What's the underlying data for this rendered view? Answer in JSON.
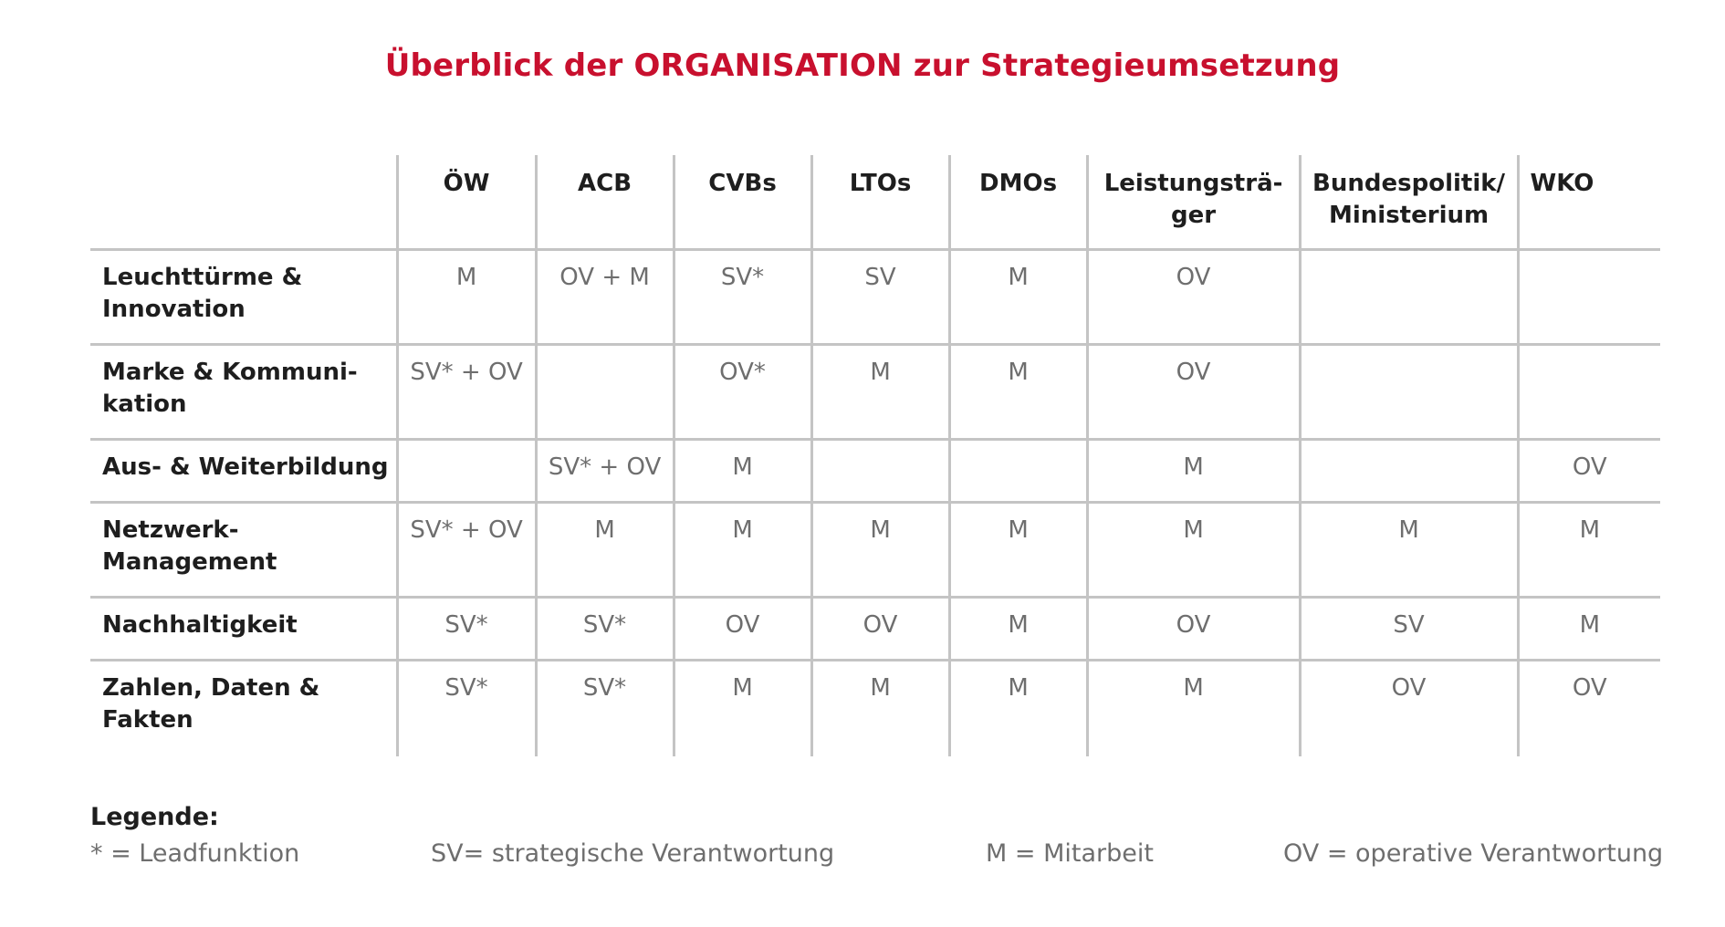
{
  "title": "Überblick der ORGANISATION zur Strategieumsetzung",
  "table": {
    "columns": [
      "ÖW",
      "ACB",
      "CVBs",
      "LTOs",
      "DMOs",
      "Leistungsträ-\nger",
      "Bundespolitik/\nMinisterium",
      "WKO"
    ],
    "rows": [
      {
        "label": "Leuchttürme &\nInnovation",
        "cells": [
          "M",
          "OV + M",
          "SV*",
          "SV",
          "M",
          "OV",
          "",
          ""
        ]
      },
      {
        "label": "Marke & Kommuni-\nkation",
        "cells": [
          "SV* + OV",
          "",
          "OV*",
          "M",
          "M",
          "OV",
          "",
          ""
        ]
      },
      {
        "label": "Aus- & Weiterbildung",
        "cells": [
          "",
          "SV* + OV",
          "M",
          "",
          "",
          "M",
          "",
          "OV"
        ]
      },
      {
        "label": "Netzwerk-\nManagement",
        "cells": [
          "SV* + OV",
          "M",
          "M",
          "M",
          "M",
          "M",
          "M",
          "M"
        ]
      },
      {
        "label": "Nachhaltigkeit",
        "cells": [
          "SV*",
          "SV*",
          "OV",
          "OV",
          "M",
          "OV",
          "SV",
          "M"
        ]
      },
      {
        "label": "Zahlen, Daten &\nFakten",
        "cells": [
          "SV*",
          "SV*",
          "M",
          "M",
          "M",
          "M",
          "OV",
          "OV"
        ]
      }
    ]
  },
  "legend": {
    "title": "Legende:",
    "items": [
      "* = Leadfunktion",
      "SV= strategische Verantwortung",
      "M = Mitarbeit",
      "OV = operative Verantwortung"
    ]
  },
  "colors": {
    "title": "#c8102e",
    "grid_line": "#c4c4c4",
    "label_text": "#1e1e1e",
    "value_text": "#6e6e6e"
  }
}
